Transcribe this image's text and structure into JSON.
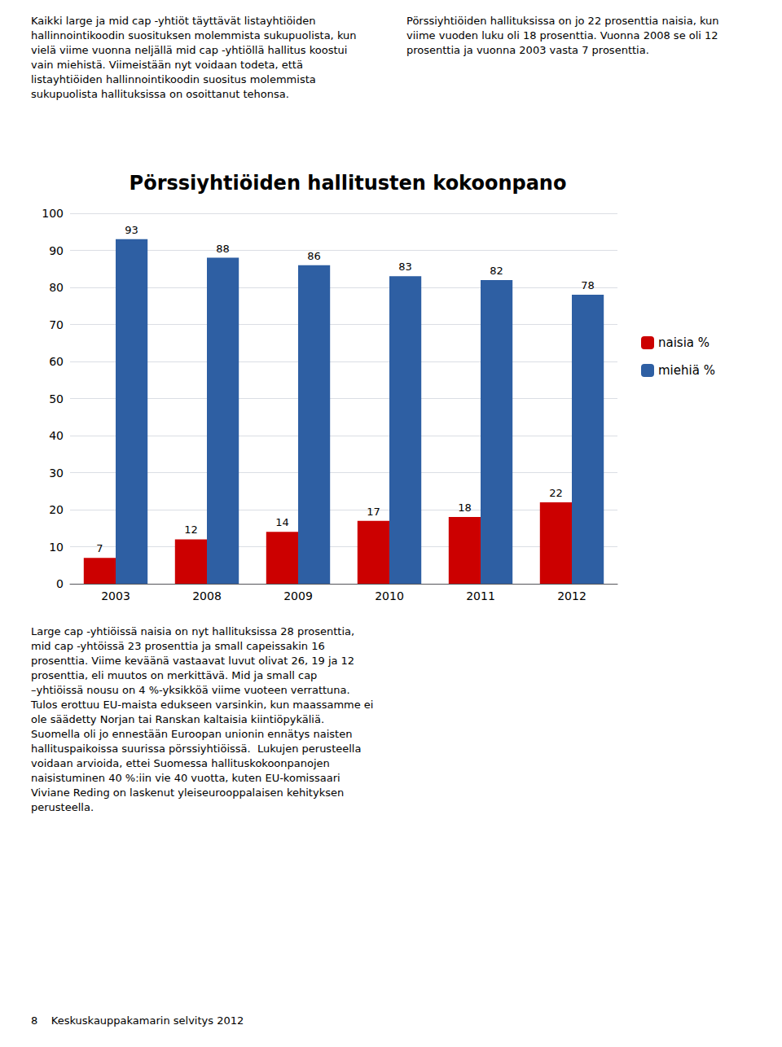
{
  "chart_data": {
    "type": "bar",
    "title": "Pörssiyhtiöiden hallitusten kokoonpano",
    "categories": [
      "2003",
      "2008",
      "2009",
      "2010",
      "2011",
      "2012"
    ],
    "series": [
      {
        "name": "naisia %",
        "color": "#cc0000",
        "values": [
          7,
          12,
          14,
          17,
          18,
          22
        ]
      },
      {
        "name": "miehiä %",
        "color": "#2e5fa3",
        "values": [
          93,
          88,
          86,
          83,
          82,
          78
        ]
      }
    ],
    "ylim": [
      0,
      100
    ],
    "yticks": [
      0,
      10,
      20,
      30,
      40,
      50,
      60,
      70,
      80,
      90,
      100
    ],
    "grid": true,
    "legend": "right",
    "data_labels": true,
    "annotations": [
      "Kaikki large ja mid cap -yhtiöt täyttävät listayhtiöiden hallinnointikoodin suosituksen molemmista sukupuolista, kun vielä viime vuonna neljällä mid cap -yhtiöllä hallitus koostui vain miehistä. Viimeistään nyt voidaan todeta, että listayhtiöiden hallinnointikoodin suositus molemmista sukupuolista hallituksissa on osoittanut tehonsa.",
      "Pörssiyhtiöiden hallituksissa on jo 22 prosenttia naisia, kun viime vuoden luku oli 18 prosenttia. Vuonna 2008 se oli 12 prosenttia ja vuonna 2003 vasta 7 prosenttia.",
      "Large cap -yhtiöissä naisia on nyt hallituksissa 28 prosenttia, mid cap -yhtöissä 23 prosenttia ja small capeissakin 16 prosenttia. Viime keväänä vastaavat luvut olivat 26, 19 ja 12 prosenttia, eli muutos on merkittävä. Mid ja small cap –yhtiöissä nousu on 4 %-yksikköä viime vuoteen verrattuna. Tulos erottuu EU-maista edukseen varsinkin, kun maassamme ei ole säädetty Norjan tai Ranskan kaltaisia kiintiöpykäliä. Suomella oli jo ennestään Euroopan unionin ennätys naisten hallituspaikoissa suurissa pörssiyhtiöissä.  Lukujen perusteella voidaan arvioida, ettei Suomessa hallituskokoonpanojen naisistuminen 40 %:iin vie 40 vuotta, kuten EU-komissaari Viviane Reding on laskenut yleiseurooppalaisen kehityksen perusteella.",
      "8    Keskuskauppakamarin selvitys 2012"
    ]
  }
}
